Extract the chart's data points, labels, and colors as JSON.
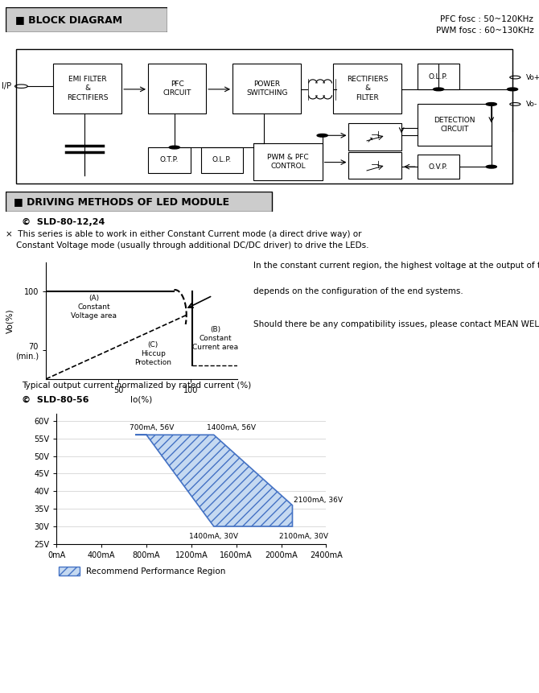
{
  "bg_color": "#ffffff",
  "title_block": "BLOCK DIAGRAM",
  "title_driving": "DRIVING METHODS OF LED MODULE",
  "pfc_text": "PFC fosc : 50~120KHz\nPWM fosc : 60~130KHz",
  "sld_1224_label": "©  SLD-80-12,24",
  "note_text": "×  This series is able to work in either Constant Current mode (a direct drive way) or\n    Constant Voltage mode (usually through additional DC/DC driver) to drive the LEDs.",
  "cc_note1": "In the constant current region, the highest voltage at the output of the driver",
  "cc_note2": "depends on the configuration of the end systems.",
  "cc_note3": "Should there be any compatibility issues, please contact MEAN WELL.",
  "chart1_xlabel": "Io(%)",
  "chart1_ylabel": "Vo(%)",
  "chart1_label_A": "(A)\nConstant\nVoltage area",
  "chart1_label_B": "(B)\nConstant\nCurrent area",
  "chart1_label_C": "(C)\nHiccup\nProtection",
  "chart1_caption": "Typical output current normalized by rated current (%)",
  "sld_56_label": "©  SLD-80-56",
  "chart2_polygon_x": [
    700,
    1400,
    2100,
    2100,
    1400,
    800
  ],
  "chart2_polygon_y": [
    56,
    56,
    36,
    30,
    30,
    56
  ],
  "chart2_polygon_color": "#4472c4",
  "chart2_polygon_fill": "#c5d9f1",
  "chart2_xlim": [
    0,
    2400
  ],
  "chart2_ylim": [
    25,
    62
  ],
  "chart2_xticks": [
    0,
    400,
    800,
    1200,
    1600,
    2000,
    2400
  ],
  "chart2_xticklabels": [
    "0mA",
    "400mA",
    "800mA",
    "1200mA",
    "1600mA",
    "2000mA",
    "2400mA"
  ],
  "chart2_yticks": [
    25,
    30,
    35,
    40,
    45,
    50,
    55,
    60
  ],
  "chart2_yticklabels": [
    "25V",
    "30V",
    "35V",
    "40V",
    "45V",
    "50V",
    "55V",
    "60V"
  ],
  "legend_label": "Recommend Performance Region"
}
